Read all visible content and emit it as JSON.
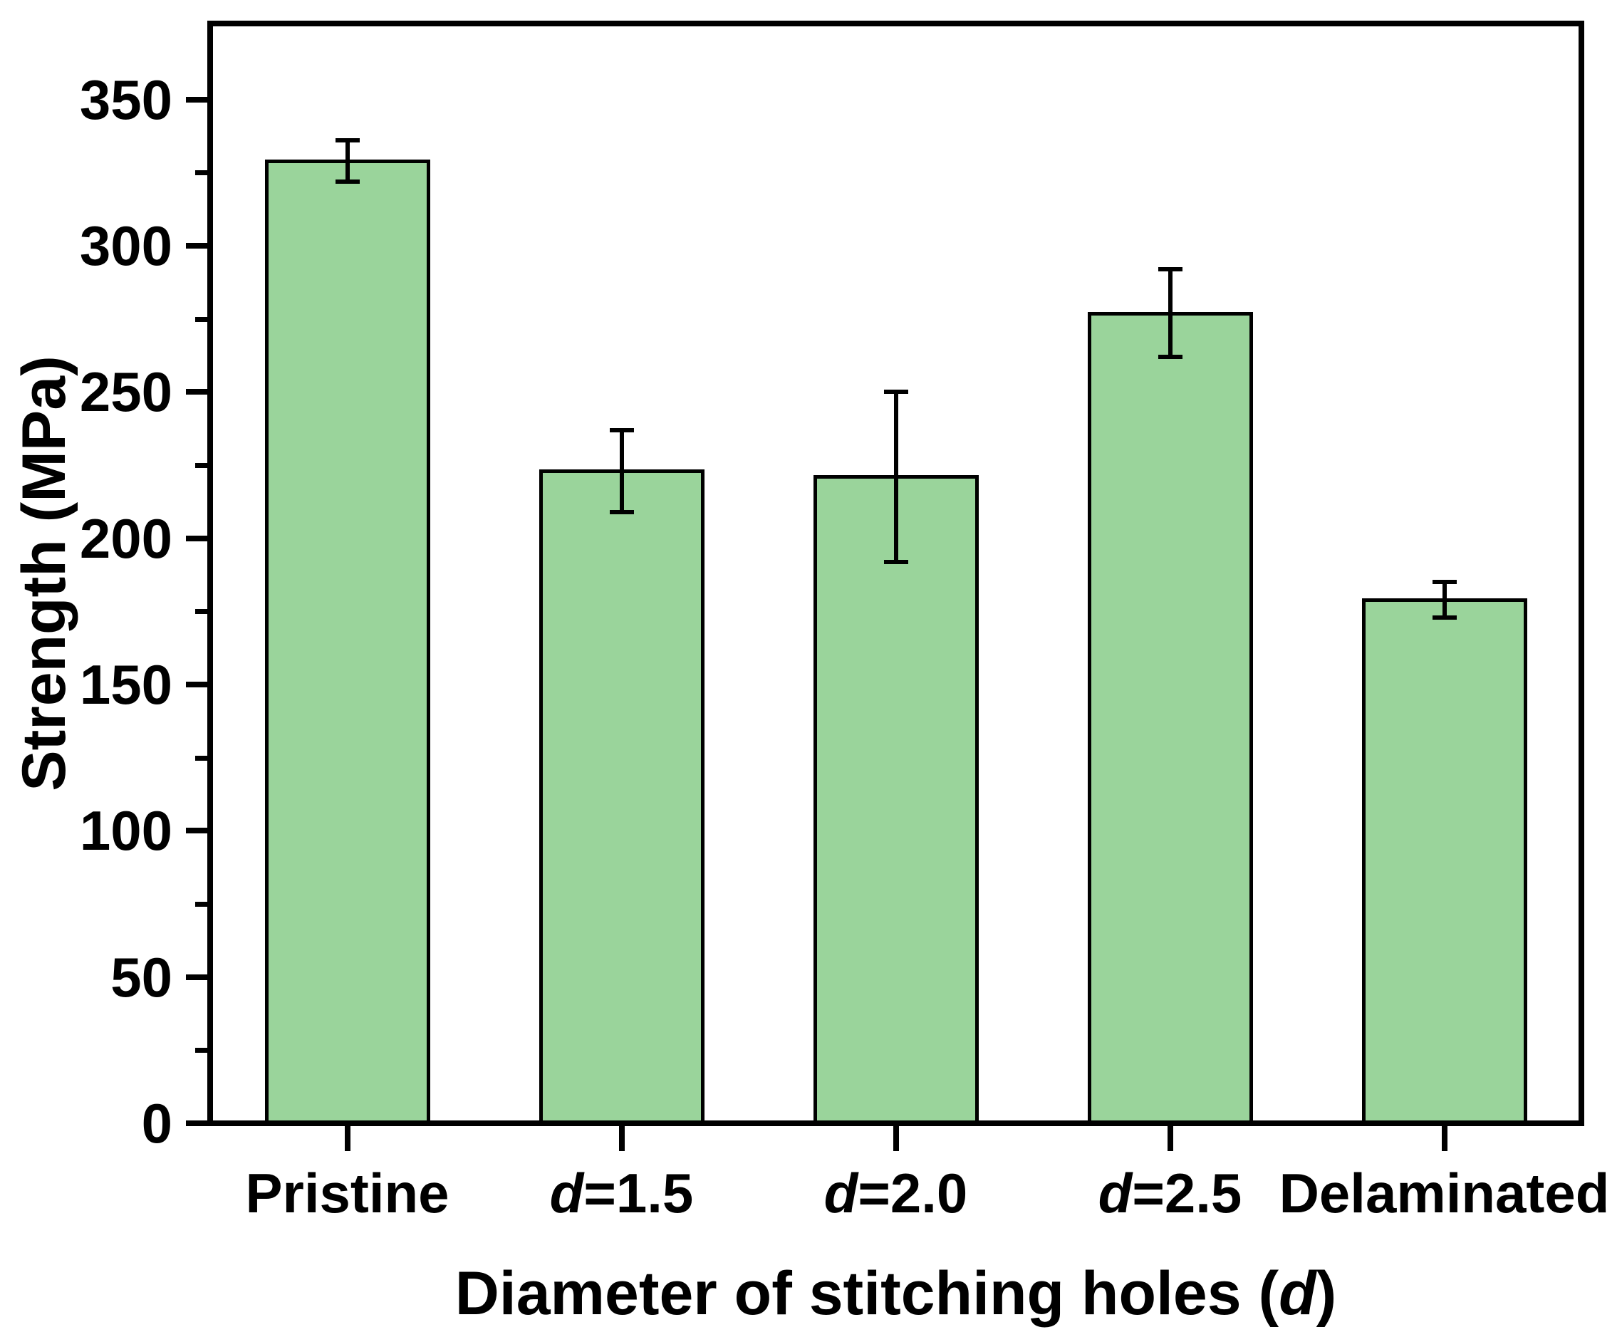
{
  "chart_data": {
    "type": "bar",
    "title": "",
    "categories": [
      "Pristine",
      "d=1.5",
      "d=2.0",
      "d=2.5",
      "Delaminated"
    ],
    "values": [
      329,
      223,
      221,
      277,
      179
    ],
    "errors": [
      7,
      14,
      29,
      15,
      6
    ],
    "xlabel": "Diameter of stitching holes (d)",
    "ylabel": "Strength (MPa)",
    "ylim": [
      0,
      376
    ],
    "yticks_major": [
      0,
      50,
      100,
      150,
      200,
      250,
      300,
      350
    ],
    "yticks_minor": [
      25,
      75,
      125,
      175,
      225,
      275,
      325
    ],
    "bar_color": "#9ad49b",
    "bar_edge_color": "#000000",
    "error_color": "#000000",
    "grid": false,
    "legend": null,
    "frame": true,
    "italic_variable": "d"
  }
}
